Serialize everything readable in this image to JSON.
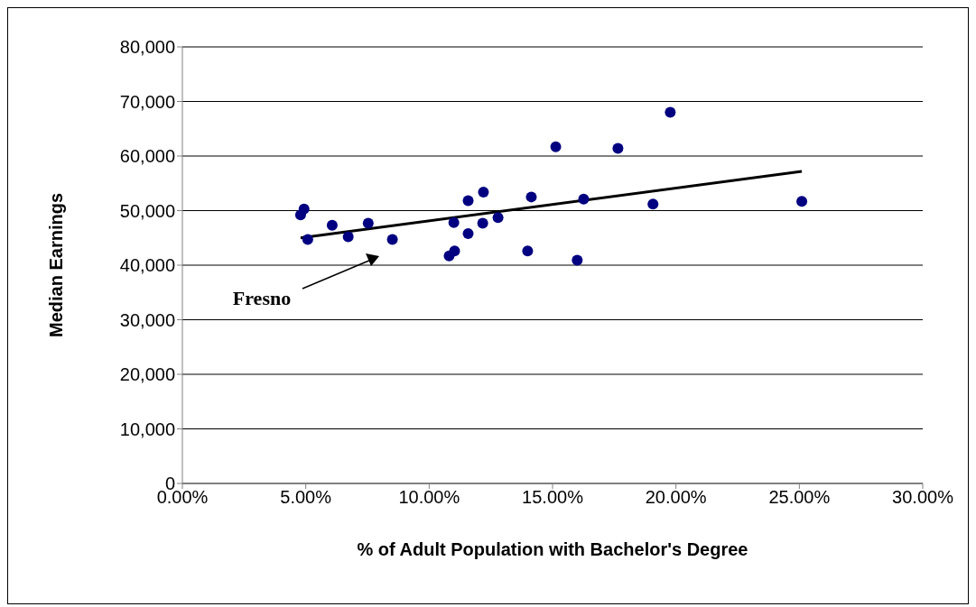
{
  "chart_data": {
    "type": "scatter",
    "xlabel": "% of Adult Population with Bachelor's Degree",
    "ylabel": "Median Earnings",
    "xlim": [
      0,
      30
    ],
    "xticks": [
      {
        "value": 0,
        "label": "0.00%"
      },
      {
        "value": 5,
        "label": "5.00%"
      },
      {
        "value": 10,
        "label": "10.00%"
      },
      {
        "value": 15,
        "label": "15.00%"
      },
      {
        "value": 20,
        "label": "20.00%"
      },
      {
        "value": 25,
        "label": "25.00%"
      },
      {
        "value": 30,
        "label": "30.00%"
      }
    ],
    "ylim": [
      0,
      80000
    ],
    "yticks": [
      0,
      {
        "value": 10000,
        "label": "10,000"
      },
      {
        "value": 20000,
        "label": "20,000"
      },
      {
        "value": 30000,
        "label": "30,000"
      },
      {
        "value": 40000,
        "label": "40,000"
      },
      {
        "value": 50000,
        "label": "50,000"
      },
      {
        "value": 60000,
        "label": "60,000"
      },
      {
        "value": 70000,
        "label": "70,000"
      },
      {
        "value": 80000,
        "label": "80,000"
      }
    ],
    "grid": "y",
    "legend": false,
    "series": [
      {
        "marker": "circle",
        "color": "#000080",
        "x": [
          4.79,
          4.93,
          5.08,
          6.07,
          6.72,
          7.53,
          8.51,
          10.81,
          11.03,
          11.0,
          11.58,
          11.58,
          12.2,
          12.17,
          12.79,
          13.99,
          14.14,
          15.13,
          16.0,
          16.26,
          17.65,
          19.07,
          19.77,
          25.1
        ],
        "values": [
          49200,
          50300,
          44700,
          47300,
          45200,
          47700,
          44700,
          41700,
          42600,
          47800,
          45800,
          51800,
          53400,
          47700,
          48700,
          42600,
          52500,
          61700,
          40900,
          52100,
          61400,
          51200,
          68000,
          51700
        ]
      },
      {
        "type": "line",
        "color": "#000000",
        "line_style": "solid",
        "x": [
          4.79,
          25.1
        ],
        "values": [
          45000,
          57200
        ]
      }
    ],
    "annotations": [
      "Fresno"
    ]
  }
}
